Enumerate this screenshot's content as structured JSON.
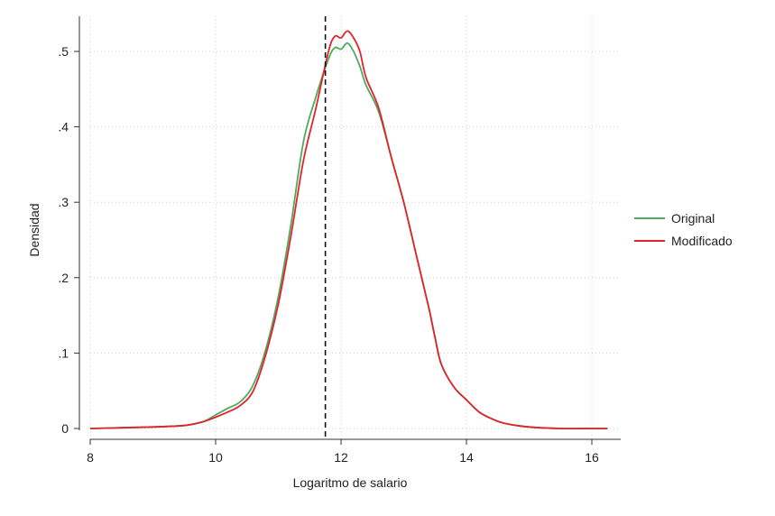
{
  "chart_data": {
    "type": "line",
    "xlabel": "Logaritmo de salario",
    "ylabel": "Densidad",
    "xlim": [
      8,
      16.4
    ],
    "ylim": [
      0,
      0.53
    ],
    "x_ticks": [
      8,
      10,
      12,
      14,
      16
    ],
    "x_tick_labels": [
      "8",
      "10",
      "12",
      "14",
      "16"
    ],
    "y_ticks": [
      0,
      0.1,
      0.2,
      0.3,
      0.4,
      0.5
    ],
    "y_tick_labels": [
      "0",
      ".1",
      ".2",
      ".3",
      ".4",
      ".5"
    ],
    "grid": true,
    "legend_position": "right",
    "reference_line": {
      "x": 11.75,
      "style": "dashed"
    },
    "series": [
      {
        "name": "Original",
        "color": "#4daa5f",
        "x": [
          8.0,
          8.5,
          9.0,
          9.5,
          9.8,
          10.0,
          10.2,
          10.4,
          10.6,
          10.8,
          11.0,
          11.2,
          11.4,
          11.6,
          11.8,
          11.9,
          12.0,
          12.1,
          12.2,
          12.3,
          12.4,
          12.6,
          12.8,
          13.0,
          13.2,
          13.4,
          13.5,
          13.6,
          13.8,
          14.0,
          14.2,
          14.4,
          14.6,
          15.0,
          15.5,
          16.0,
          16.25
        ],
        "y": [
          0.0,
          0.001,
          0.002,
          0.004,
          0.009,
          0.018,
          0.027,
          0.036,
          0.058,
          0.105,
          0.175,
          0.27,
          0.38,
          0.44,
          0.49,
          0.505,
          0.503,
          0.511,
          0.5,
          0.48,
          0.455,
          0.42,
          0.36,
          0.3,
          0.23,
          0.16,
          0.12,
          0.085,
          0.055,
          0.038,
          0.022,
          0.013,
          0.007,
          0.002,
          0.0,
          0.0,
          0.0
        ]
      },
      {
        "name": "Modificado",
        "color": "#e2242a",
        "x": [
          8.0,
          8.5,
          9.0,
          9.5,
          9.8,
          10.0,
          10.2,
          10.4,
          10.6,
          10.8,
          11.0,
          11.2,
          11.4,
          11.6,
          11.8,
          11.9,
          12.0,
          12.1,
          12.2,
          12.3,
          12.4,
          12.6,
          12.8,
          13.0,
          13.2,
          13.4,
          13.5,
          13.6,
          13.8,
          14.0,
          14.2,
          14.4,
          14.6,
          15.0,
          15.5,
          16.0,
          16.25
        ],
        "y": [
          0.0,
          0.001,
          0.002,
          0.004,
          0.009,
          0.015,
          0.022,
          0.031,
          0.05,
          0.098,
          0.165,
          0.255,
          0.355,
          0.425,
          0.5,
          0.52,
          0.518,
          0.527,
          0.518,
          0.5,
          0.465,
          0.425,
          0.36,
          0.3,
          0.23,
          0.16,
          0.12,
          0.085,
          0.055,
          0.038,
          0.022,
          0.013,
          0.007,
          0.002,
          0.0,
          0.0,
          0.0
        ]
      }
    ]
  }
}
